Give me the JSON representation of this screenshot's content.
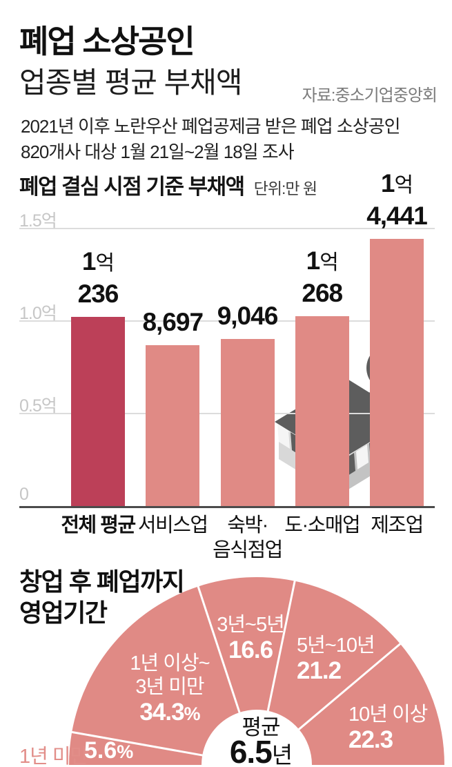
{
  "header": {
    "title_line1": "폐업 소상공인",
    "title_line2": "업종별 평균 부채액",
    "source": "자료:중소기업중앙회",
    "subtitle_line1": "2021년 이후 노란우산 폐업공제금 받은 폐업 소상공인",
    "subtitle_line2": "820개사 대상 1월 21일~2월 18일 조사"
  },
  "icon": {
    "name": "storefront-won-icon",
    "symbol": "₩",
    "color": "#5d5d5d"
  },
  "chart_data": [
    {
      "type": "bar",
      "title": "폐업 결심 시점 기준 부채액",
      "unit_label": "단위:만 원",
      "unit": "만 원",
      "categories": [
        "전체 평균",
        "서비스업",
        "숙박·음식점업",
        "도·소매업",
        "제조업"
      ],
      "category_lines": [
        [
          "전체 평균"
        ],
        [
          "서비스업"
        ],
        [
          "숙박·",
          "음식점업"
        ],
        [
          "도·소매업"
        ],
        [
          "제조업"
        ]
      ],
      "values": [
        10236,
        8697,
        9046,
        10268,
        14441
      ],
      "value_labels": [
        [
          "1억",
          "236"
        ],
        [
          "8,697"
        ],
        [
          "9,046"
        ],
        [
          "1억",
          "268"
        ],
        [
          "1억",
          "4,441"
        ]
      ],
      "highlight_index": 0,
      "highlight_color": "#bc4058",
      "bar_color": "#e08a85",
      "grid": true,
      "ylim": [
        0,
        16500
      ],
      "y_ticks": [
        {
          "label": "1.5억",
          "value": 15000
        },
        {
          "label": "1.0억",
          "value": 10000
        },
        {
          "label": "0.5억",
          "value": 5000
        },
        {
          "label": "0",
          "value": 0
        }
      ]
    },
    {
      "type": "pie",
      "shape": "semi-donut",
      "title": "창업 후 폐업까지 영업기간",
      "title_lines": [
        "창업 후 폐업까지",
        "영업기간"
      ],
      "color": "#e08a85",
      "separator_color": "#ffffff",
      "segments": [
        {
          "label": "1년 미만",
          "value": 5.6,
          "display": "5.6%",
          "label_placement": "outside"
        },
        {
          "label": "1년 이상~3년 미만",
          "value": 34.3,
          "display": "34.3%",
          "label_lines": [
            "1년 이상~",
            "3년 미만"
          ]
        },
        {
          "label": "3년~5년",
          "value": 16.6,
          "display": "16.6",
          "label_lines": [
            "3년~5년"
          ]
        },
        {
          "label": "5년~10년",
          "value": 21.2,
          "display": "21.2",
          "label_lines": [
            "5년~10년"
          ]
        },
        {
          "label": "10년 이상",
          "value": 22.3,
          "display": "22.3",
          "label_lines": [
            "10년 이상"
          ]
        }
      ],
      "center_label": "평균",
      "center_value": "6.5",
      "center_unit": "년"
    }
  ]
}
